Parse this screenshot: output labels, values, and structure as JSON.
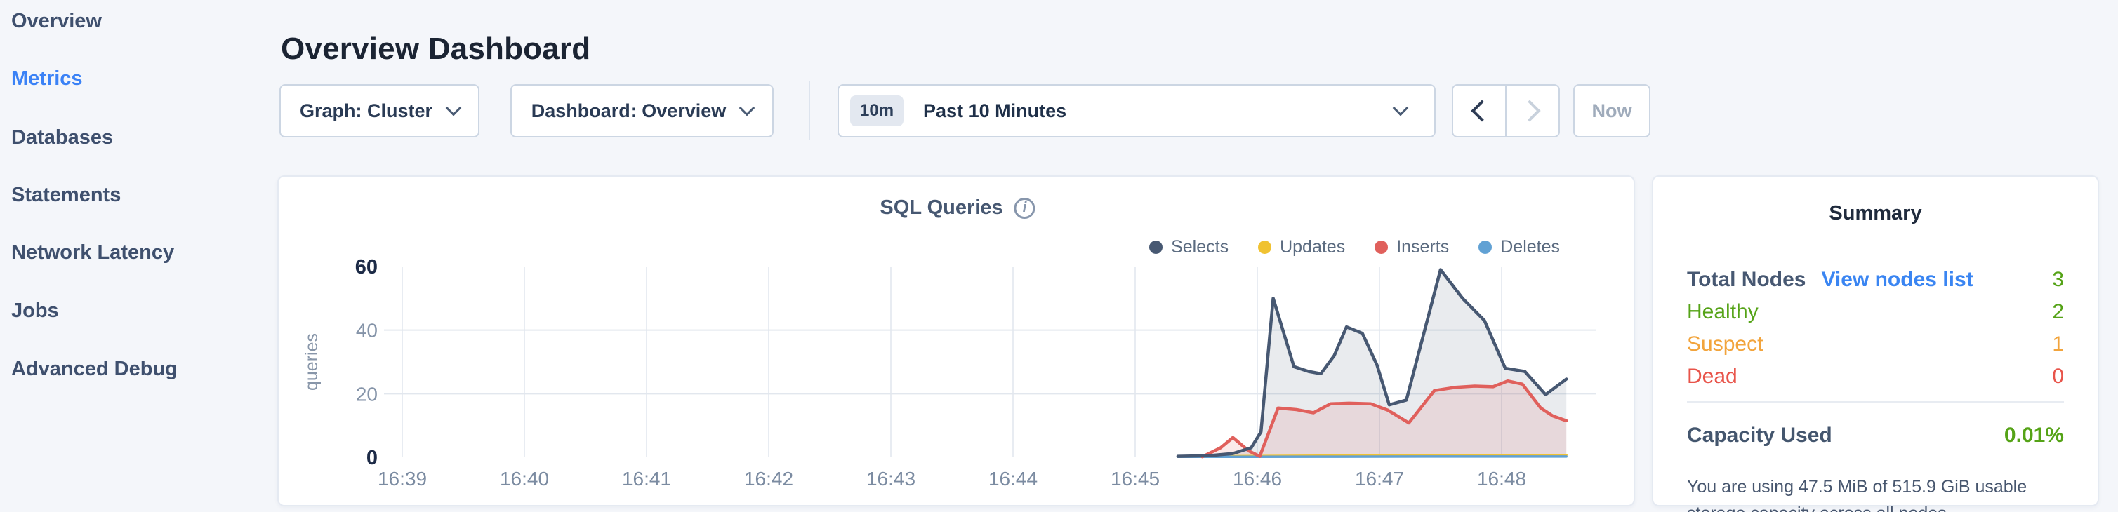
{
  "sidebar": {
    "items": [
      {
        "label": "Overview",
        "active": false
      },
      {
        "label": "Metrics",
        "active": true
      },
      {
        "label": "Databases",
        "active": false
      },
      {
        "label": "Statements",
        "active": false
      },
      {
        "label": "Network Latency",
        "active": false
      },
      {
        "label": "Jobs",
        "active": false
      },
      {
        "label": "Advanced Debug",
        "active": false
      }
    ]
  },
  "header": {
    "title": "Overview Dashboard"
  },
  "toolbar": {
    "graph_dropdown": {
      "label": "Graph: Cluster"
    },
    "dashboard_dropdown": {
      "label": "Dashboard: Overview"
    },
    "time_picker": {
      "badge": "10m",
      "label": "Past 10 Minutes"
    },
    "now_button": "Now"
  },
  "chart": {
    "title": "SQL Queries",
    "info_icon": "i",
    "ylabel": "queries"
  },
  "chart_data": {
    "type": "area",
    "title": "SQL Queries",
    "ylabel": "queries",
    "x_ticks": [
      "16:39",
      "16:40",
      "16:41",
      "16:42",
      "16:43",
      "16:44",
      "16:45",
      "16:46",
      "16:47",
      "16:48"
    ],
    "y_ticks": [
      0,
      20,
      40,
      60
    ],
    "ylim": [
      0,
      60
    ],
    "grid": true,
    "legend_position": "top-right",
    "x_unit": "minutes after 16:39",
    "series": [
      {
        "name": "Selects",
        "color": "#475872",
        "fill": "rgba(71,88,114,0.12)",
        "points": [
          [
            6.35,
            0.3
          ],
          [
            6.6,
            0.5
          ],
          [
            6.8,
            1.2
          ],
          [
            6.95,
            3
          ],
          [
            7.03,
            8
          ],
          [
            7.13,
            50
          ],
          [
            7.3,
            28.5
          ],
          [
            7.42,
            27
          ],
          [
            7.52,
            26.3
          ],
          [
            7.63,
            32
          ],
          [
            7.73,
            41
          ],
          [
            7.86,
            39
          ],
          [
            7.98,
            29
          ],
          [
            8.08,
            16.5
          ],
          [
            8.22,
            18
          ],
          [
            8.5,
            59
          ],
          [
            8.68,
            50
          ],
          [
            8.86,
            43
          ],
          [
            9.03,
            28
          ],
          [
            9.19,
            27
          ],
          [
            9.36,
            19.7
          ],
          [
            9.53,
            24.6
          ]
        ]
      },
      {
        "name": "Updates",
        "color": "#f0c232",
        "points": [
          [
            6.4,
            0.2
          ],
          [
            7.0,
            0.4
          ],
          [
            7.5,
            0.5
          ],
          [
            8.0,
            0.5
          ],
          [
            8.5,
            0.6
          ],
          [
            9.0,
            0.7
          ],
          [
            9.53,
            0.7
          ]
        ]
      },
      {
        "name": "Inserts",
        "color": "#e0605c",
        "fill": "rgba(224,96,92,0.13)",
        "points": [
          [
            6.55,
            0.2
          ],
          [
            6.7,
            3
          ],
          [
            6.8,
            6.2
          ],
          [
            6.93,
            2
          ],
          [
            7.02,
            0.3
          ],
          [
            7.17,
            15.5
          ],
          [
            7.32,
            15
          ],
          [
            7.46,
            14
          ],
          [
            7.6,
            16.8
          ],
          [
            7.75,
            17
          ],
          [
            7.93,
            16.8
          ],
          [
            8.07,
            14.8
          ],
          [
            8.24,
            10.8
          ],
          [
            8.45,
            21
          ],
          [
            8.62,
            22
          ],
          [
            8.78,
            22.4
          ],
          [
            8.93,
            22.2
          ],
          [
            9.05,
            24
          ],
          [
            9.17,
            23
          ],
          [
            9.32,
            15.5
          ],
          [
            9.42,
            13
          ],
          [
            9.53,
            11.5
          ]
        ]
      },
      {
        "name": "Deletes",
        "color": "#61a1d4",
        "points": [
          [
            6.35,
            0.15
          ],
          [
            7.5,
            0.2
          ],
          [
            8.5,
            0.25
          ],
          [
            9.53,
            0.25
          ]
        ]
      }
    ]
  },
  "summary": {
    "title": "Summary",
    "rows": [
      {
        "label": "Total Nodes",
        "link": "View nodes list",
        "value": "3",
        "label_color": "#475872",
        "link_color": "#3a85f2",
        "value_color": "#55a317"
      },
      {
        "label": "Healthy",
        "value": "2",
        "label_color": "#55a317",
        "value_color": "#55a317"
      },
      {
        "label": "Suspect",
        "value": "1",
        "label_color": "#f2a43c",
        "value_color": "#f2a43c"
      },
      {
        "label": "Dead",
        "value": "0",
        "label_color": "#e8544a",
        "value_color": "#e8544a"
      }
    ],
    "capacity": {
      "label": "Capacity Used",
      "value": "0.01%",
      "value_color": "#55a317",
      "description": "You are using 47.5 MiB of 515.9 GiB usable storage capacity across all nodes."
    }
  }
}
